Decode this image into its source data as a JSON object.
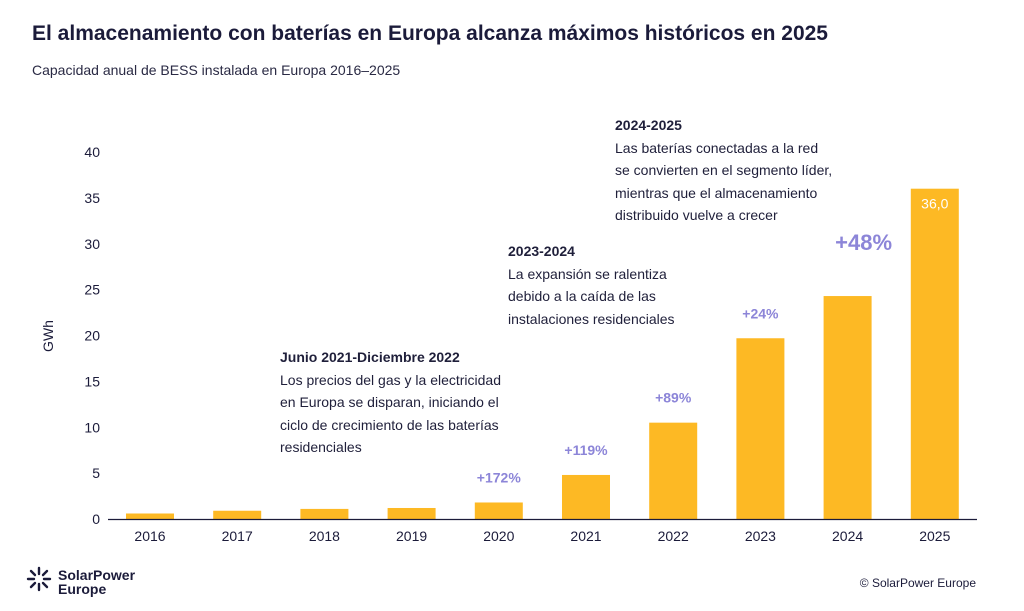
{
  "header": {
    "title": "El almacenamiento con baterías en Europa alcanza máximos históricos en 2025",
    "subtitle": "Capacidad anual de BESS instalada en Europa 2016–2025"
  },
  "chart_data": {
    "type": "bar",
    "categories": [
      "2016",
      "2017",
      "2018",
      "2019",
      "2020",
      "2021",
      "2022",
      "2023",
      "2024",
      "2025"
    ],
    "values": [
      0.6,
      0.9,
      1.1,
      1.2,
      1.8,
      4.8,
      10.5,
      19.7,
      24.3,
      36.0
    ],
    "growth_labels": [
      "",
      "",
      "",
      "",
      "+172%",
      "+119%",
      "+89%",
      "+24%",
      "+48%",
      ""
    ],
    "value_labels": [
      "",
      "",
      "",
      "",
      "",
      "",
      "",
      "",
      "",
      "36,0"
    ],
    "ylabel": "GWh",
    "xlabel": "",
    "ylim": [
      0,
      40
    ],
    "yticks": [
      0,
      5,
      10,
      15,
      20,
      25,
      30,
      35,
      40
    ],
    "grid": false,
    "legend": "none",
    "colors": {
      "bar": "#FDB924",
      "growth_label": "#8C85D8",
      "axis": "#1b1b3a",
      "bar_label": "#ffffff"
    }
  },
  "annotations": [
    {
      "heading": "2024-2025",
      "lines": [
        "Las baterías conectadas a la red",
        "se convierten en el segmento líder,",
        "mientras que el almacenamiento",
        "distribuido vuelve a crecer"
      ]
    },
    {
      "heading": "2023-2024",
      "lines": [
        "La expansión se ralentiza",
        "debido a la caída de las",
        "instalaciones residenciales"
      ]
    },
    {
      "heading": "Junio 2021-Diciembre 2022",
      "lines": [
        "Los precios del gas y la electricidad",
        "en Europa se disparan, iniciando el",
        "ciclo de crecimiento de las baterías",
        "residenciales"
      ]
    }
  ],
  "footer": {
    "logo_line1": "SolarPower",
    "logo_line2": "Europe",
    "logo_icon": "sun-burst-icon",
    "copyright": "© SolarPower Europe"
  }
}
